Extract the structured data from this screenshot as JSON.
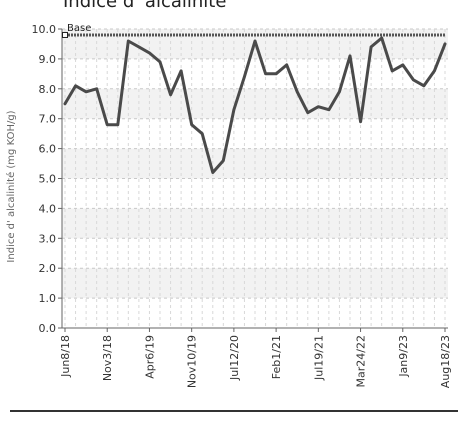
{
  "chart_data": {
    "type": "line",
    "title": "Indice d' alcalinité",
    "ylabel": "Indice d' alcalinité (mg KOH/g)",
    "xlabel": "",
    "ylim": [
      0,
      10
    ],
    "y_ticks": [
      "0.0",
      "1.0",
      "2.0",
      "3.0",
      "4.0",
      "5.0",
      "6.0",
      "7.0",
      "8.0",
      "9.0",
      "10.0"
    ],
    "x_tick_labels": [
      "Jun8/18",
      "Nov3/18",
      "Apr6/19",
      "Nov10/19",
      "Jul12/20",
      "Feb1/21",
      "Jul19/21",
      "Mar24/22",
      "Jan9/23",
      "Aug18/23"
    ],
    "x_tick_positions": [
      0,
      4,
      8,
      12,
      16,
      20,
      24,
      28,
      32,
      36
    ],
    "grid": true,
    "series": [
      {
        "values": [
          7.5,
          8.1,
          7.9,
          8.0,
          6.8,
          6.8,
          9.6,
          9.4,
          9.2,
          8.9,
          7.8,
          8.6,
          6.8,
          6.5,
          5.2,
          5.6,
          7.3,
          8.4,
          9.6,
          8.5,
          8.5,
          8.8,
          7.9,
          7.2,
          7.4,
          7.3,
          7.9,
          9.1,
          6.9,
          9.4,
          9.7,
          8.6,
          8.8,
          8.3,
          8.1,
          8.6,
          9.5
        ],
        "color": "#4a4a4a"
      }
    ],
    "reference_line": {
      "name": "Base",
      "value": 9.8,
      "color": "#555555"
    }
  }
}
